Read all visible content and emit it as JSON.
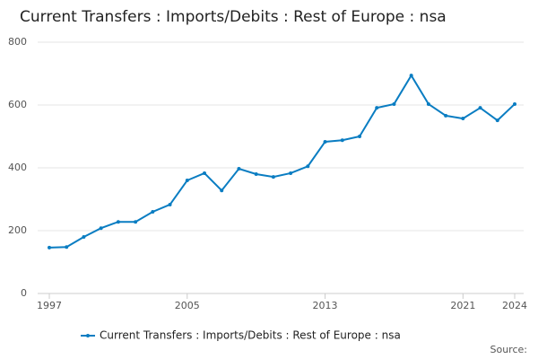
{
  "chart_data": {
    "type": "line",
    "title": "Current Transfers : Imports/Debits : Rest of Europe : nsa",
    "x": [
      1997,
      1998,
      1999,
      2000,
      2001,
      2002,
      2003,
      2004,
      2005,
      2006,
      2007,
      2008,
      2009,
      2010,
      2011,
      2012,
      2013,
      2014,
      2015,
      2016,
      2017,
      2018,
      2019,
      2020,
      2021,
      2022,
      2023,
      2024
    ],
    "series": [
      {
        "name": "Current Transfers : Imports/Debits : Rest of Europe : nsa",
        "color": "#0a7dc2",
        "values": [
          146,
          148,
          180,
          208,
          228,
          228,
          260,
          283,
          360,
          383,
          328,
          397,
          380,
          371,
          383,
          405,
          483,
          488,
          500,
          591,
          603,
          694,
          603,
          566,
          557,
          591,
          551,
          603
        ]
      }
    ],
    "xlim": [
      1997,
      2024
    ],
    "xticks": [
      1997,
      2005,
      2013,
      2021,
      2024
    ],
    "ylim": [
      0,
      800
    ],
    "yticks": [
      0,
      200,
      400,
      600,
      800
    ],
    "grid": true,
    "legend": "bottom",
    "source": "Source:"
  }
}
